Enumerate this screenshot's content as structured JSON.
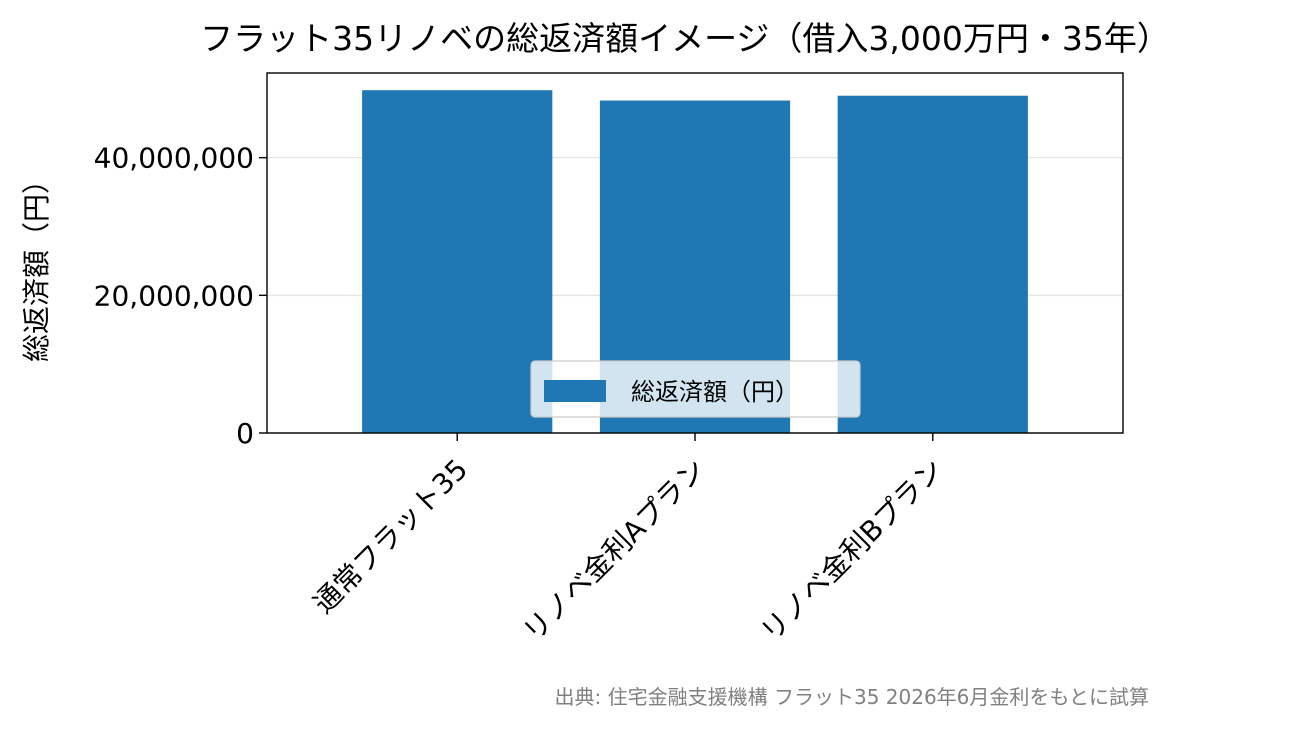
{
  "chart_data": {
    "type": "bar",
    "title": "フラット35リノベの総返済額イメージ（借入3,000万円・35年）",
    "xlabel": "",
    "ylabel": "総返済額（円）",
    "categories": [
      "通常フラット35",
      "リノベ金利Aプラン",
      "リノベ金利Bプラン"
    ],
    "series": [
      {
        "name": "総返済額（円）",
        "values": [
          49800000,
          48300000,
          49000000
        ],
        "color": "#1f77b4"
      }
    ],
    "ylim": [
      0,
      52300000
    ],
    "yticks": [
      0,
      20000000,
      40000000
    ],
    "ytick_labels": [
      "0",
      "20,000,000",
      "40,000,000"
    ],
    "grid": "y",
    "grid_color": "#e6e6e6",
    "legend_position": "bottom-center",
    "source_note": "出典: 住宅金融支援機構 フラット35 2026年6月金利をもとに試算",
    "source_note_color": "#808080"
  }
}
